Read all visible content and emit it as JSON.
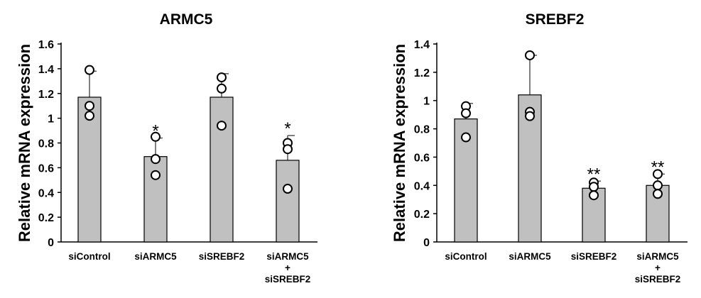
{
  "chart_data": [
    {
      "type": "bar",
      "title": "ARMC5",
      "ylabel": "Relative mRNA expression",
      "xlabel": "",
      "ylim": [
        0,
        1.6
      ],
      "yticks": [
        "0",
        "0.2",
        "0.4",
        "0.6",
        "0.8",
        "1",
        "1.2",
        "1.4",
        "1.6"
      ],
      "bar_color": "#c0c0c0",
      "categories": [
        {
          "lines": [
            "siControl"
          ]
        },
        {
          "lines": [
            "siARMC5"
          ]
        },
        {
          "lines": [
            "siSREBF2"
          ]
        },
        {
          "lines": [
            "siARMC5",
            "+",
            "siSREBF2"
          ]
        }
      ],
      "values": [
        1.17,
        0.69,
        1.17,
        0.66
      ],
      "errors": [
        0.21,
        0.15,
        0.19,
        0.2
      ],
      "points": [
        [
          1.39,
          1.1,
          1.02
        ],
        [
          0.85,
          0.67,
          0.54
        ],
        [
          1.33,
          1.24,
          0.94
        ],
        [
          0.8,
          0.75,
          0.43
        ]
      ],
      "significance": [
        "",
        "*",
        "",
        "*"
      ]
    },
    {
      "type": "bar",
      "title": "SREBF2",
      "ylabel": "Relative mRNA expression",
      "xlabel": "",
      "ylim": [
        0,
        1.4
      ],
      "yticks": [
        "0",
        "0.2",
        "0.4",
        "0.6",
        "0.8",
        "1",
        "1.2",
        "1.4"
      ],
      "bar_color": "#c0c0c0",
      "categories": [
        {
          "lines": [
            "siControl"
          ]
        },
        {
          "lines": [
            "siARMC5"
          ]
        },
        {
          "lines": [
            "siSREBF2"
          ]
        },
        {
          "lines": [
            "siARMC5",
            "+",
            "siSREBF2"
          ]
        }
      ],
      "values": [
        0.87,
        1.04,
        0.38,
        0.4
      ],
      "errors": [
        0.11,
        0.28,
        0.05,
        0.08
      ],
      "points": [
        [
          0.96,
          0.91,
          0.74
        ],
        [
          1.32,
          0.92,
          0.89
        ],
        [
          0.42,
          0.39,
          0.33
        ],
        [
          0.48,
          0.4,
          0.34
        ]
      ],
      "significance": [
        "",
        "",
        "**",
        "**"
      ]
    }
  ]
}
